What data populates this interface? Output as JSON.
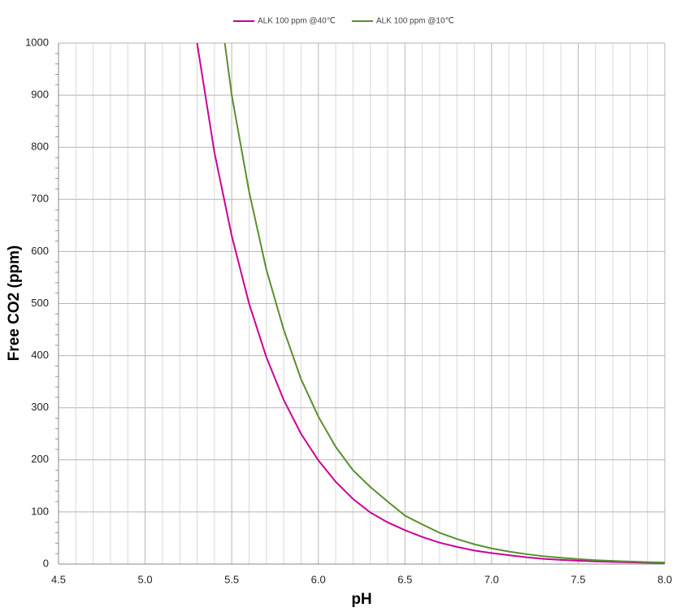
{
  "chart_data": {
    "type": "line",
    "x_label": "pH",
    "y_label": "Free CO2 (ppm)",
    "series": [
      {
        "name": "ALK 100 ppm @40℃",
        "color": "#cc0099",
        "x": [
          5.3,
          5.4,
          5.5,
          5.6,
          5.7,
          5.8,
          5.9,
          6.0,
          6.1,
          6.2,
          6.3,
          6.4,
          6.5,
          6.6,
          6.7,
          6.8,
          6.9,
          7.0,
          7.1,
          7.2,
          7.3,
          7.4,
          7.5,
          7.6,
          7.7,
          7.8,
          7.9,
          8.0
        ],
        "values": [
          1000,
          790,
          630,
          500,
          397,
          315,
          250,
          199,
          158,
          125,
          99,
          80,
          65,
          52,
          41,
          33,
          26,
          21,
          17,
          13,
          10,
          8,
          6.5,
          5,
          4,
          3.3,
          2.6,
          2
        ]
      },
      {
        "name": "ALK 100 ppm @10℃",
        "color": "#5b8f2f",
        "x": [
          5.46,
          5.5,
          5.6,
          5.7,
          5.8,
          5.9,
          6.0,
          6.1,
          6.2,
          6.3,
          6.4,
          6.5,
          6.6,
          6.7,
          6.8,
          6.9,
          7.0,
          7.1,
          7.2,
          7.3,
          7.4,
          7.5,
          7.6,
          7.7,
          7.8,
          7.9,
          8.0
        ],
        "values": [
          1000,
          900,
          715,
          565,
          450,
          355,
          283,
          225,
          180,
          148,
          120,
          93,
          76,
          60,
          48,
          38,
          30,
          24,
          19,
          15,
          12,
          9.5,
          7.5,
          6,
          4.8,
          3.8,
          3
        ]
      }
    ],
    "xlim": [
      4.5,
      8.0
    ],
    "xticks": [
      4.5,
      {
        "value": 5,
        "label": "5.0"
      },
      5.5,
      {
        "value": 6,
        "label": "6.0"
      },
      6.5,
      {
        "value": 7,
        "label": "7.0"
      },
      7.5,
      {
        "value": 8,
        "label": "8.0"
      }
    ],
    "ylim": [
      0,
      1000
    ],
    "yticks": [
      0,
      100,
      200,
      300,
      400,
      500,
      600,
      700,
      800,
      900,
      1000
    ],
    "grid": true,
    "legend": "top"
  }
}
